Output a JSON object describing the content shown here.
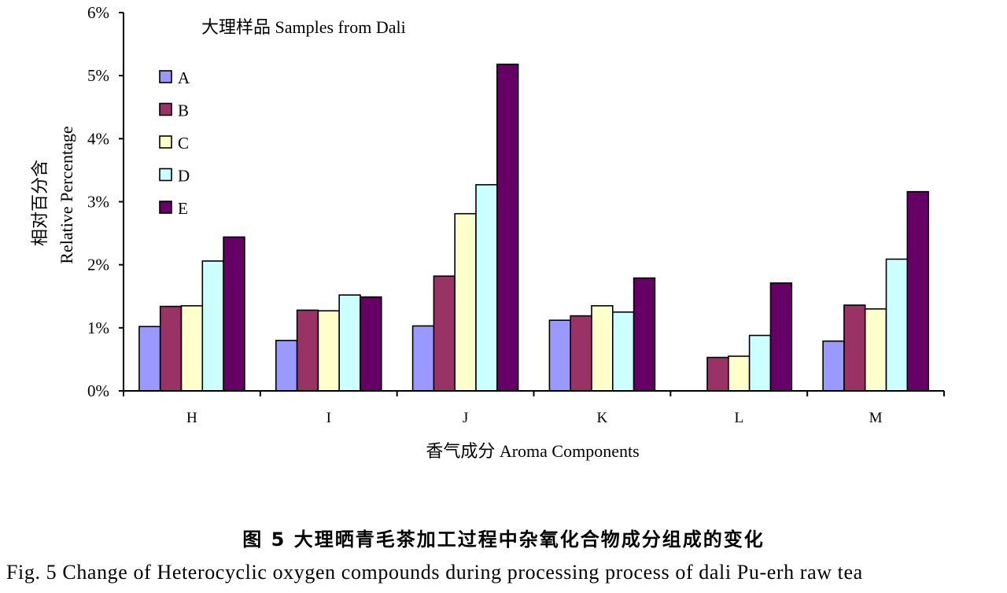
{
  "chart_data": {
    "type": "bar",
    "title": "大理样品 Samples from Dali",
    "xlabel": "香气成分 Aroma Components",
    "ylabel_zh": "相对百分含",
    "ylabel_en": "Relative Percentage",
    "categories": [
      "H",
      "I",
      "J",
      "K",
      "L",
      "M"
    ],
    "y_ticks": [
      "0%",
      "1%",
      "2%",
      "3%",
      "4%",
      "5%",
      "6%"
    ],
    "ylim": [
      0,
      6
    ],
    "grid": false,
    "legend_position": "top-left",
    "series": [
      {
        "name": "A",
        "color": "#9999ff",
        "values": [
          1.02,
          0.8,
          1.03,
          1.12,
          0.0,
          0.79
        ]
      },
      {
        "name": "B",
        "color": "#993366",
        "values": [
          1.34,
          1.28,
          1.82,
          1.19,
          0.53,
          1.36
        ]
      },
      {
        "name": "C",
        "color": "#ffffcc",
        "values": [
          1.35,
          1.27,
          2.81,
          1.35,
          0.55,
          1.3
        ]
      },
      {
        "name": "D",
        "color": "#ccffff",
        "values": [
          2.06,
          1.52,
          3.27,
          1.25,
          0.88,
          2.09
        ]
      },
      {
        "name": "E",
        "color": "#660066",
        "values": [
          2.44,
          1.49,
          5.18,
          1.79,
          1.71,
          3.16
        ]
      }
    ]
  },
  "caption": {
    "zh": "图 5  大理晒青毛茶加工过程中杂氧化合物成分组成的变化",
    "en": "Fig. 5 Change of Heterocyclic oxygen compounds during processing process of dali Pu-erh raw tea"
  }
}
